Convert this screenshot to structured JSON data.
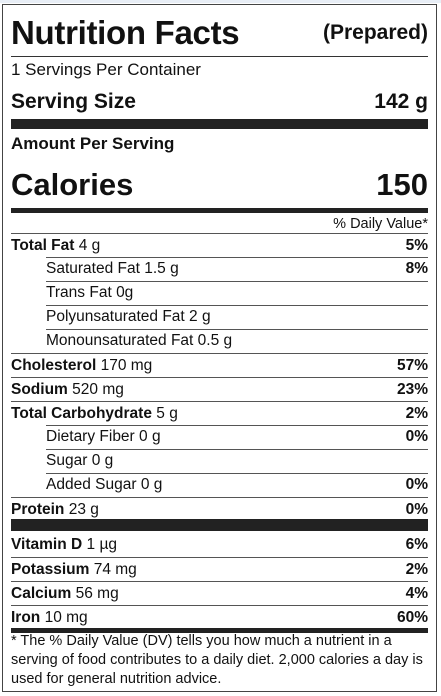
{
  "header": {
    "title": "Nutrition Facts",
    "prepared": "(Prepared)"
  },
  "servings_per_container": "1 Servings Per Container",
  "serving_size": {
    "label": "Serving Size",
    "value": "142 g"
  },
  "amount_per_serving": "Amount Per Serving",
  "calories": {
    "label": "Calories",
    "value": "150"
  },
  "dv_header": "% Daily Value*",
  "nutrients": [
    {
      "name": "Total Fat",
      "amount": "4 g",
      "dv": "5%"
    },
    {
      "name": "Saturated Fat",
      "amount": "1.5 g",
      "dv": "8%"
    },
    {
      "name": "Trans Fat",
      "amount": "0g",
      "dv": ""
    },
    {
      "name": "Polyunsaturated Fat",
      "amount": "2 g",
      "dv": ""
    },
    {
      "name": "Monounsaturated Fat",
      "amount": "0.5 g",
      "dv": ""
    },
    {
      "name": "Cholesterol",
      "amount": "170 mg",
      "dv": "57%"
    },
    {
      "name": "Sodium",
      "amount": "520 mg",
      "dv": "23%"
    },
    {
      "name": "Total Carbohydrate",
      "amount": "5 g",
      "dv": "2%"
    },
    {
      "name": "Dietary Fiber",
      "amount": "0 g",
      "dv": "0%"
    },
    {
      "name": "Sugar",
      "amount": "0 g",
      "dv": ""
    },
    {
      "name": "Added Sugar",
      "amount": "0 g",
      "dv": "0%"
    },
    {
      "name": "Protein",
      "amount": "23 g",
      "dv": "0%"
    }
  ],
  "vitamins": [
    {
      "name": "Vitamin D",
      "amount": "1 µg",
      "dv": "6%"
    },
    {
      "name": "Potassium",
      "amount": "74 mg",
      "dv": "2%"
    },
    {
      "name": "Calcium",
      "amount": "56 mg",
      "dv": "4%"
    },
    {
      "name": "Iron",
      "amount": "10 mg",
      "dv": "60%"
    }
  ],
  "footnote": "* The % Daily Value (DV) tells you how much a nutrient in a serving of food contributes to a daily diet. 2,000 calories a day is used for general nutrition advice."
}
